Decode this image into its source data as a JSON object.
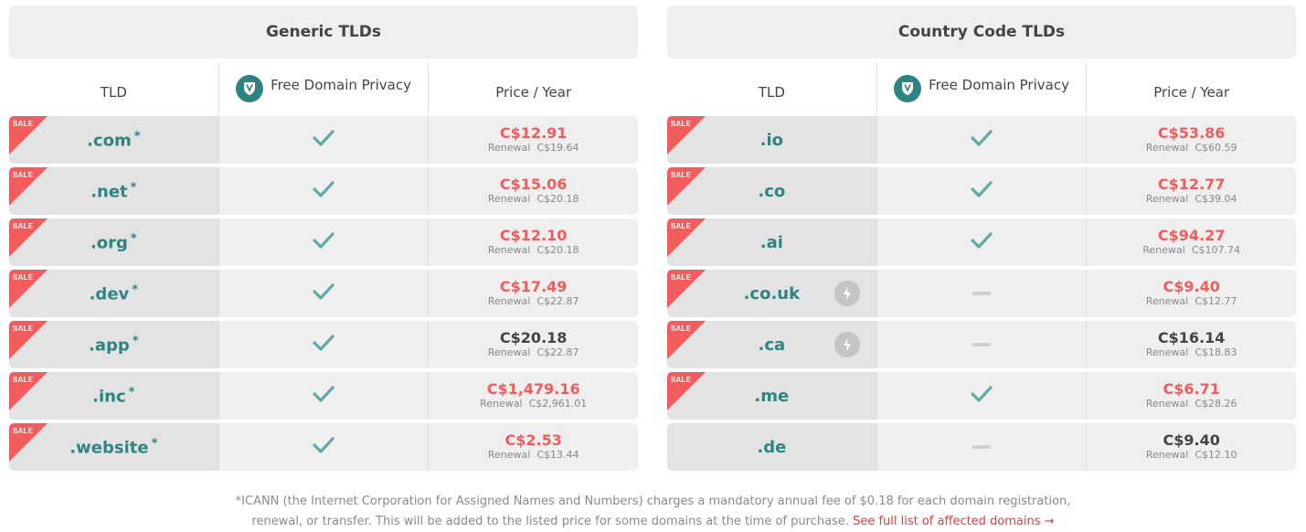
{
  "colors": {
    "accent": "#2e8482",
    "sale": "#f25c5c",
    "header_bg": "#efefef"
  },
  "columns": {
    "tld": "TLD",
    "privacy": "Free Domain Privacy",
    "price": "Price / Year"
  },
  "sale_label": "SALE",
  "renewal_label": "Renewal",
  "panels": [
    {
      "title": "Generic TLDs",
      "rows": [
        {
          "tld": ".com",
          "star": "*",
          "sale": true,
          "privacy": "check",
          "price": "C$12.91",
          "sale_price": true,
          "renewal": "C$19.64"
        },
        {
          "tld": ".net",
          "star": "*",
          "sale": true,
          "privacy": "check",
          "price": "C$15.06",
          "sale_price": true,
          "renewal": "C$20.18"
        },
        {
          "tld": ".org",
          "star": "*",
          "sale": true,
          "privacy": "check",
          "price": "C$12.10",
          "sale_price": true,
          "renewal": "C$20.18"
        },
        {
          "tld": ".dev",
          "star": "*",
          "sale": true,
          "privacy": "check",
          "price": "C$17.49",
          "sale_price": true,
          "renewal": "C$22.87"
        },
        {
          "tld": ".app",
          "star": "*",
          "sale": true,
          "privacy": "check",
          "price": "C$20.18",
          "sale_price": false,
          "renewal": "C$22.87"
        },
        {
          "tld": ".inc",
          "star": "*",
          "sale": true,
          "privacy": "check",
          "price": "C$1,479.16",
          "sale_price": true,
          "renewal": "C$2,961.01"
        },
        {
          "tld": ".website",
          "star": "*",
          "sale": true,
          "privacy": "check",
          "price": "C$2.53",
          "sale_price": true,
          "renewal": "C$13.44"
        }
      ]
    },
    {
      "title": "Country Code TLDs",
      "rows": [
        {
          "tld": ".io",
          "star": "",
          "sale": true,
          "privacy": "check",
          "price": "C$53.86",
          "sale_price": true,
          "renewal": "C$60.59"
        },
        {
          "tld": ".co",
          "star": "",
          "sale": true,
          "privacy": "check",
          "price": "C$12.77",
          "sale_price": true,
          "renewal": "C$39.04"
        },
        {
          "tld": ".ai",
          "star": "",
          "sale": true,
          "privacy": "check",
          "price": "C$94.27",
          "sale_price": true,
          "renewal": "C$107.74"
        },
        {
          "tld": ".co.uk",
          "star": "",
          "sale": true,
          "bolt": true,
          "privacy": "none",
          "price": "C$9.40",
          "sale_price": true,
          "renewal": "C$12.77"
        },
        {
          "tld": ".ca",
          "star": "",
          "sale": true,
          "bolt": true,
          "privacy": "none",
          "price": "C$16.14",
          "sale_price": false,
          "renewal": "C$18.83"
        },
        {
          "tld": ".me",
          "star": "",
          "sale": true,
          "privacy": "check",
          "price": "C$6.71",
          "sale_price": true,
          "renewal": "C$28.26"
        },
        {
          "tld": ".de",
          "star": "",
          "sale": false,
          "privacy": "none",
          "price": "C$9.40",
          "sale_price": false,
          "renewal": "C$12.10"
        }
      ]
    }
  ],
  "footnote": {
    "line1": "*ICANN (the Internet Corporation for Assigned Names and Numbers) charges a mandatory annual fee of $0.18 for each domain registration,",
    "line2": "renewal, or transfer. This will be added to the listed price for some domains at the time of purchase.",
    "link": "See full list of affected domains →"
  }
}
